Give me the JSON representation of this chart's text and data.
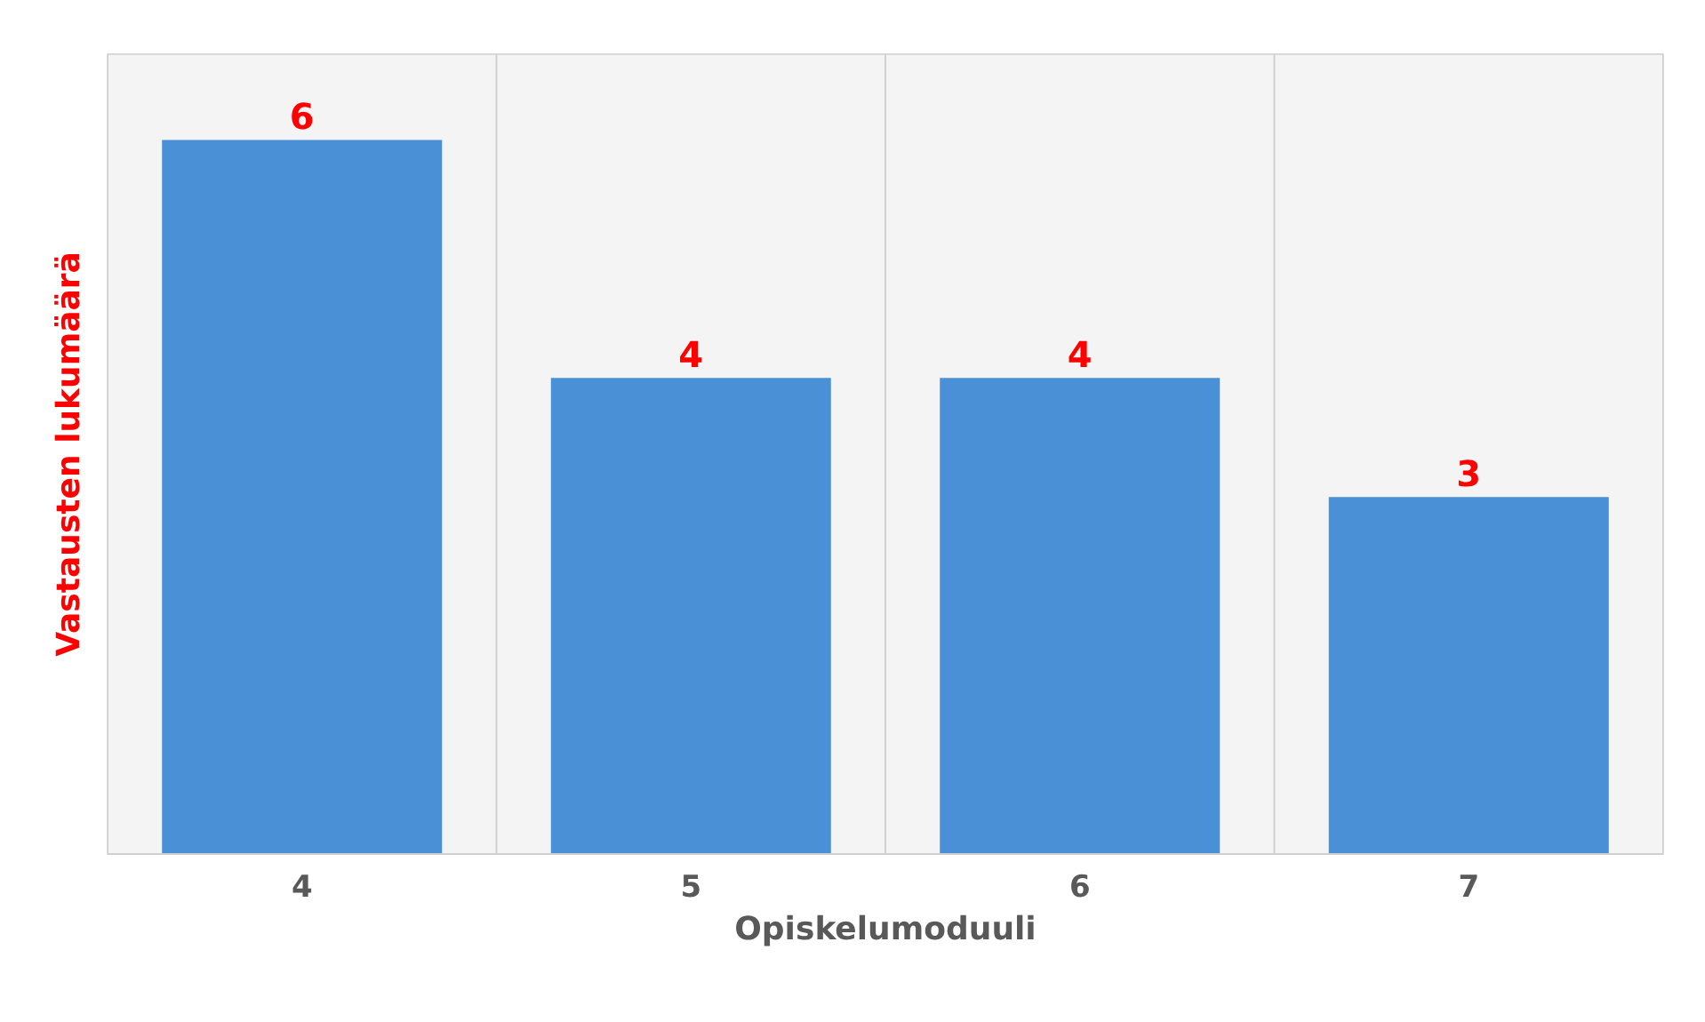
{
  "chart_data": {
    "type": "bar",
    "xlabel": "Opiskelumoduuli",
    "ylabel": "Vastausten lukumäärä",
    "categories": [
      "4",
      "5",
      "6",
      "7"
    ],
    "values": [
      6,
      4,
      4,
      3
    ],
    "color": "#4a90d6",
    "data_labels": true,
    "grid": "x"
  }
}
